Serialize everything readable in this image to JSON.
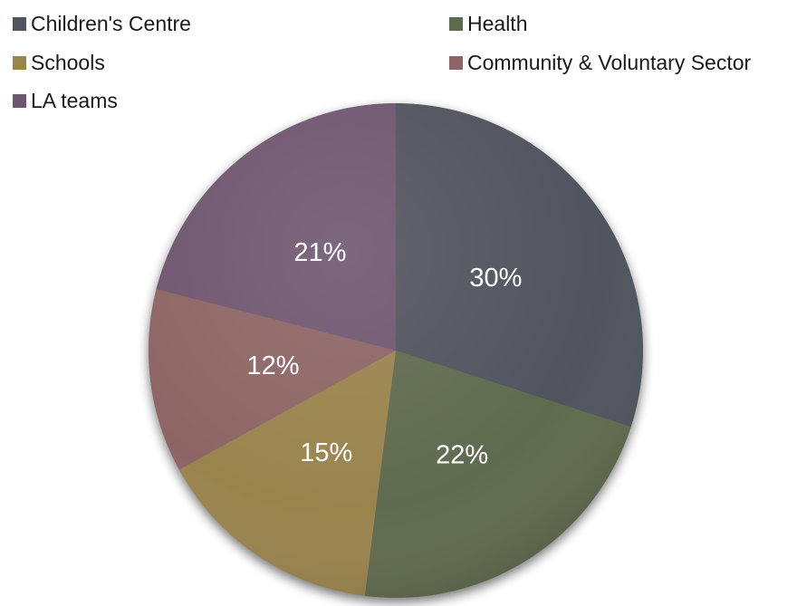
{
  "chart_data": {
    "type": "pie",
    "title": "",
    "categories": [
      "Children's Centre",
      "Health",
      "Schools",
      "Community & Voluntary Sector",
      "LA teams"
    ],
    "values": [
      30,
      22,
      15,
      12,
      21
    ],
    "value_labels": [
      "30%",
      "22%",
      "15%",
      "12%",
      "21%"
    ],
    "colors": [
      "#4f545e",
      "#5f6b4f",
      "#9a844e",
      "#8e6565",
      "#6f5670"
    ],
    "start_angle_deg": 0,
    "direction": "clockwise",
    "legend_position": "top",
    "legend": [
      {
        "label": "Children's Centre",
        "color": "#4f545e"
      },
      {
        "label": "Health",
        "color": "#5f6b4f"
      },
      {
        "label": "Schools",
        "color": "#9a844e"
      },
      {
        "label": "Community & Voluntary Sector",
        "color": "#8e6565"
      },
      {
        "label": "LA teams",
        "color": "#6f5670"
      }
    ]
  }
}
